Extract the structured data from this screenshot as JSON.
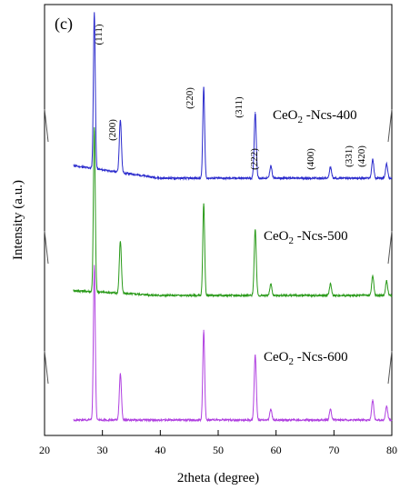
{
  "chart_data": {
    "type": "line",
    "panel_label": "(c)",
    "xlabel": "2theta (degree)",
    "ylabel": "Intensity (a.u.)",
    "xlim": [
      20,
      80
    ],
    "xticks": [
      20,
      30,
      40,
      50,
      60,
      70,
      80
    ],
    "y_ticks_shown": false,
    "grid": false,
    "peak_labels": [
      "(111)",
      "(200)",
      "(220)",
      "(311)",
      "(222)",
      "(400)",
      "(331)",
      "(420)"
    ],
    "peak_positions": [
      28.6,
      33.1,
      47.5,
      56.4,
      59.1,
      69.4,
      76.7,
      79.1
    ],
    "series": [
      {
        "name": "CeO2 -Ncs-400",
        "label_main": "CeO",
        "label_sub": "2",
        "label_rest": " -Ncs-400",
        "color": "#2a2acc",
        "baseline": 0.08,
        "peaks": [
          {
            "x": 28.6,
            "y": 1.0
          },
          {
            "x": 33.1,
            "y": 0.34
          },
          {
            "x": 47.5,
            "y": 0.58
          },
          {
            "x": 56.4,
            "y": 0.42
          },
          {
            "x": 59.1,
            "y": 0.08
          },
          {
            "x": 69.4,
            "y": 0.07
          },
          {
            "x": 76.7,
            "y": 0.12
          },
          {
            "x": 79.1,
            "y": 0.09
          }
        ]
      },
      {
        "name": "CeO2 -Ncs-500",
        "label_main": "CeO",
        "label_sub": "2",
        "label_rest": " -Ncs-500",
        "color": "#2a9a1a",
        "baseline": 0.03,
        "peaks": [
          {
            "x": 28.6,
            "y": 1.0
          },
          {
            "x": 33.1,
            "y": 0.32
          },
          {
            "x": 47.5,
            "y": 0.56
          },
          {
            "x": 56.4,
            "y": 0.4
          },
          {
            "x": 59.1,
            "y": 0.07
          },
          {
            "x": 69.4,
            "y": 0.07
          },
          {
            "x": 76.7,
            "y": 0.12
          },
          {
            "x": 79.1,
            "y": 0.09
          }
        ]
      },
      {
        "name": "CeO2 -Ncs-600",
        "label_main": "CeO",
        "label_sub": "2",
        "label_rest": " -Ncs-600",
        "color": "#b040e0",
        "baseline": 0.0,
        "peaks": [
          {
            "x": 28.6,
            "y": 1.0
          },
          {
            "x": 33.1,
            "y": 0.3
          },
          {
            "x": 47.5,
            "y": 0.58
          },
          {
            "x": 56.4,
            "y": 0.42
          },
          {
            "x": 59.1,
            "y": 0.07
          },
          {
            "x": 69.4,
            "y": 0.07
          },
          {
            "x": 76.7,
            "y": 0.13
          },
          {
            "x": 79.1,
            "y": 0.09
          }
        ]
      }
    ]
  }
}
